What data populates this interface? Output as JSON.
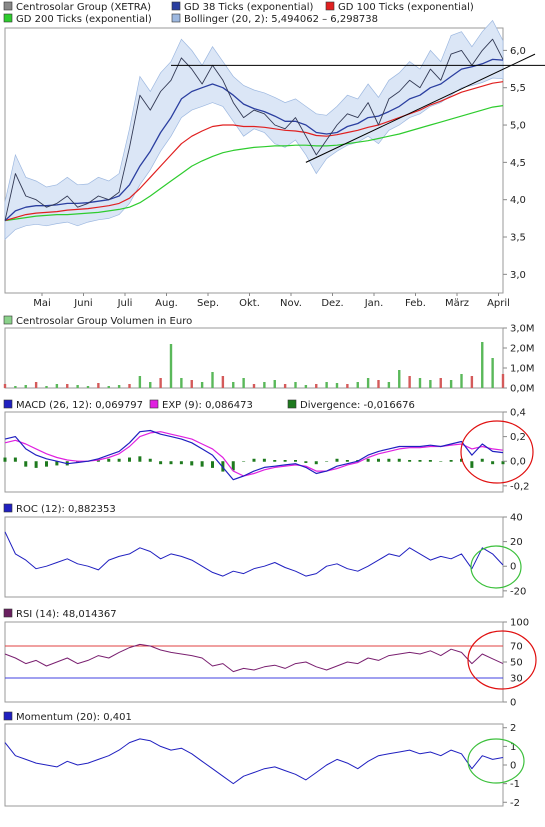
{
  "chart_data": [
    {
      "type": "line",
      "panel": "price",
      "legend": [
        {
          "name": "Centrosolar Group (XETRA)",
          "color": "#888888"
        },
        {
          "name": "GD 38 Ticks (exponential)",
          "color": "#2b3fa0"
        },
        {
          "name": "GD 100 Ticks (exponential)",
          "color": "#e02020"
        },
        {
          "name": "GD 200 Ticks (exponential)",
          "color": "#2ecc2e"
        },
        {
          "name": "Bollinger (20, 2): 5,494062 – 6,298738",
          "color": "#9db8e0"
        }
      ],
      "x_labels": [
        "Mai",
        "Juni",
        "Juli",
        "Aug.",
        "Sep.",
        "Okt.",
        "Nov.",
        "Dez.",
        "Jan.",
        "Feb.",
        "März",
        "April"
      ],
      "y_ticks": [
        "3,0",
        "3,5",
        "4,0",
        "4,5",
        "5,0",
        "5,5",
        "6,0"
      ],
      "y_range": [
        2.75,
        6.3
      ],
      "price": [
        3.72,
        4.35,
        4.05,
        4.0,
        3.9,
        3.95,
        4.05,
        3.9,
        3.95,
        4.05,
        4.0,
        4.1,
        4.7,
        5.4,
        5.2,
        5.45,
        5.6,
        5.9,
        5.75,
        5.55,
        5.8,
        5.6,
        5.3,
        5.1,
        5.2,
        5.15,
        5.0,
        4.95,
        5.1,
        4.85,
        4.6,
        4.8,
        5.0,
        5.15,
        5.1,
        5.3,
        5.0,
        5.35,
        5.45,
        5.6,
        5.5,
        5.75,
        5.6,
        5.95,
        6.0,
        5.8,
        6.0,
        6.15,
        5.88
      ],
      "sma38": [
        3.72,
        3.85,
        3.9,
        3.92,
        3.92,
        3.93,
        3.95,
        3.95,
        3.96,
        3.98,
        4.0,
        4.05,
        4.2,
        4.45,
        4.65,
        4.9,
        5.1,
        5.35,
        5.45,
        5.5,
        5.55,
        5.5,
        5.4,
        5.28,
        5.22,
        5.18,
        5.12,
        5.05,
        5.05,
        5.0,
        4.9,
        4.88,
        4.9,
        4.98,
        5.02,
        5.1,
        5.12,
        5.18,
        5.25,
        5.35,
        5.4,
        5.5,
        5.55,
        5.65,
        5.75,
        5.78,
        5.82,
        5.88,
        5.87
      ],
      "sma100": [
        3.72,
        3.76,
        3.8,
        3.82,
        3.83,
        3.84,
        3.86,
        3.87,
        3.88,
        3.9,
        3.92,
        3.95,
        4.02,
        4.15,
        4.3,
        4.45,
        4.6,
        4.75,
        4.85,
        4.92,
        4.98,
        5.0,
        5.0,
        4.98,
        4.98,
        4.97,
        4.95,
        4.93,
        4.92,
        4.9,
        4.86,
        4.85,
        4.87,
        4.9,
        4.93,
        4.97,
        5.0,
        5.05,
        5.1,
        5.15,
        5.2,
        5.27,
        5.32,
        5.38,
        5.44,
        5.48,
        5.52,
        5.56,
        5.58
      ],
      "sma200": [
        3.72,
        3.74,
        3.76,
        3.78,
        3.79,
        3.8,
        3.8,
        3.81,
        3.82,
        3.83,
        3.85,
        3.87,
        3.9,
        3.96,
        4.05,
        4.15,
        4.25,
        4.35,
        4.45,
        4.52,
        4.58,
        4.63,
        4.66,
        4.68,
        4.7,
        4.71,
        4.72,
        4.72,
        4.73,
        4.73,
        4.72,
        4.72,
        4.73,
        4.75,
        4.77,
        4.79,
        4.82,
        4.85,
        4.88,
        4.92,
        4.96,
        5.0,
        5.04,
        5.08,
        5.12,
        5.16,
        5.2,
        5.24,
        5.26
      ],
      "trendline_horizontal": 5.8,
      "trendline_support": [
        4.5,
        5.95
      ]
    },
    {
      "type": "bar",
      "panel": "volume",
      "legend": [
        {
          "name": "Centrosolar Group Volumen in Euro",
          "color": "#8bd28b"
        }
      ],
      "y_ticks": [
        "0,0M",
        "1,0M",
        "2,0M",
        "3,0M"
      ],
      "y_range": [
        0,
        3.0
      ],
      "values": [
        0.2,
        0.1,
        0.15,
        0.3,
        0.1,
        0.2,
        0.2,
        0.15,
        0.1,
        0.25,
        0.1,
        0.15,
        0.2,
        0.6,
        0.3,
        0.5,
        2.2,
        0.5,
        0.4,
        0.3,
        0.8,
        0.6,
        0.3,
        0.5,
        0.2,
        0.3,
        0.4,
        0.2,
        0.3,
        0.15,
        0.2,
        0.3,
        0.25,
        0.2,
        0.3,
        0.5,
        0.4,
        0.3,
        0.9,
        0.6,
        0.5,
        0.4,
        0.5,
        0.4,
        0.7,
        0.6,
        2.3,
        1.5,
        0.7
      ]
    },
    {
      "type": "line",
      "panel": "macd",
      "legend": [
        {
          "name": "MACD (26, 12): 0,069797",
          "color": "#2020c0"
        },
        {
          "name": "EXP (9): 0,086473",
          "color": "#e020e0"
        },
        {
          "name": "Divergence: -0,016676",
          "color": "#1e7a1e"
        }
      ],
      "y_ticks": [
        "-0,2",
        "0,0",
        "0,2",
        "0,4"
      ],
      "y_range": [
        -0.25,
        0.4
      ],
      "macd": [
        0.18,
        0.2,
        0.1,
        0.05,
        0.02,
        0.0,
        -0.02,
        -0.01,
        0.0,
        0.02,
        0.05,
        0.08,
        0.15,
        0.24,
        0.25,
        0.22,
        0.2,
        0.18,
        0.15,
        0.1,
        0.05,
        -0.05,
        -0.15,
        -0.12,
        -0.08,
        -0.05,
        -0.04,
        -0.03,
        -0.02,
        -0.05,
        -0.1,
        -0.08,
        -0.04,
        -0.02,
        0.0,
        0.05,
        0.08,
        0.1,
        0.12,
        0.12,
        0.12,
        0.13,
        0.12,
        0.14,
        0.16,
        0.05,
        0.14,
        0.08,
        0.07
      ],
      "signal": [
        0.15,
        0.17,
        0.14,
        0.1,
        0.06,
        0.03,
        0.01,
        0.0,
        0.0,
        0.01,
        0.03,
        0.06,
        0.12,
        0.2,
        0.23,
        0.24,
        0.22,
        0.2,
        0.18,
        0.14,
        0.1,
        0.03,
        -0.08,
        -0.12,
        -0.1,
        -0.07,
        -0.05,
        -0.04,
        -0.03,
        -0.04,
        -0.08,
        -0.08,
        -0.06,
        -0.03,
        -0.01,
        0.03,
        0.06,
        0.08,
        0.1,
        0.11,
        0.11,
        0.12,
        0.12,
        0.13,
        0.14,
        0.1,
        0.12,
        0.1,
        0.09
      ]
    },
    {
      "type": "line",
      "panel": "roc",
      "legend": [
        {
          "name": "ROC (12): 0,882353",
          "color": "#2020c0"
        }
      ],
      "y_ticks": [
        "-20",
        "0",
        "20",
        "40"
      ],
      "y_range": [
        -25,
        40
      ],
      "values": [
        28,
        10,
        5,
        -2,
        0,
        3,
        6,
        2,
        0,
        -3,
        5,
        8,
        10,
        15,
        12,
        6,
        10,
        8,
        5,
        0,
        -5,
        -8,
        -4,
        -6,
        -2,
        0,
        3,
        -1,
        -4,
        -8,
        -6,
        0,
        2,
        -2,
        -4,
        0,
        5,
        10,
        8,
        15,
        10,
        5,
        8,
        6,
        10,
        -2,
        15,
        10,
        1
      ]
    },
    {
      "type": "line",
      "panel": "rsi",
      "legend": [
        {
          "name": "RSI (14): 48,014367",
          "color": "#6a2060"
        }
      ],
      "y_ticks": [
        "0",
        "50",
        "100"
      ],
      "ref_lines": [
        "30",
        "70"
      ],
      "y_range": [
        0,
        100
      ],
      "values": [
        60,
        55,
        48,
        52,
        45,
        50,
        55,
        48,
        52,
        58,
        55,
        62,
        68,
        72,
        70,
        65,
        62,
        60,
        58,
        55,
        45,
        48,
        38,
        42,
        40,
        44,
        46,
        42,
        48,
        50,
        44,
        40,
        45,
        50,
        48,
        55,
        52,
        58,
        60,
        62,
        60,
        64,
        58,
        66,
        62,
        48,
        60,
        54,
        48
      ]
    },
    {
      "type": "line",
      "panel": "momentum",
      "legend": [
        {
          "name": "Momentum (20): 0,401",
          "color": "#2020c0"
        }
      ],
      "y_ticks": [
        "-2",
        "-1",
        "0",
        "1",
        "2"
      ],
      "y_range": [
        -2.2,
        2.2
      ],
      "values": [
        1.2,
        0.5,
        0.3,
        0.1,
        0.0,
        -0.1,
        0.2,
        0.0,
        0.1,
        0.3,
        0.5,
        0.8,
        1.2,
        1.4,
        1.3,
        1.0,
        0.8,
        0.9,
        0.6,
        0.2,
        -0.2,
        -0.6,
        -1.0,
        -0.6,
        -0.4,
        -0.2,
        -0.1,
        -0.3,
        -0.5,
        -0.8,
        -0.4,
        0.0,
        0.3,
        0.1,
        -0.2,
        0.2,
        0.5,
        0.6,
        0.7,
        0.8,
        0.6,
        0.7,
        0.5,
        0.8,
        0.6,
        -0.2,
        0.5,
        0.3,
        0.4
      ]
    }
  ]
}
